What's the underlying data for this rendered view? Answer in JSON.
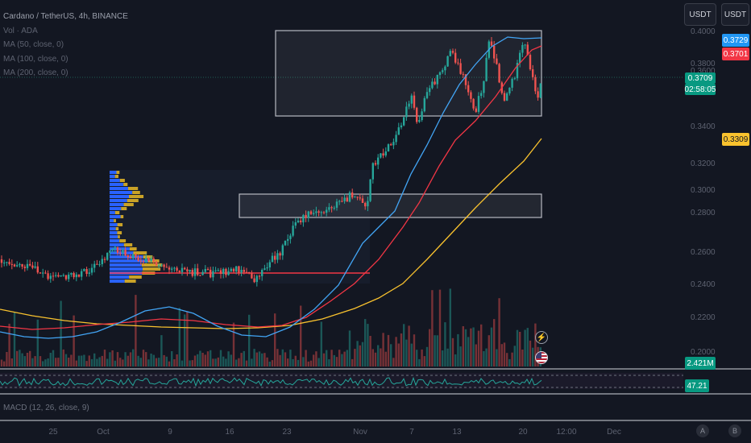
{
  "legend": {
    "symbol": "Cardano / TetherUS, 4h, BINANCE",
    "vol": "Vol · ADA",
    "ma50": "MA (50, close, 0)",
    "ma100": "MA (100, close, 0)",
    "ma200": "MA (200, close, 0)"
  },
  "macd_label": "MACD (12, 26, close, 9)",
  "buttons": {
    "currency_left": "USDT",
    "currency_right": "USDT"
  },
  "price_badges": {
    "ma50": "0.3729",
    "ma100": "0.3701",
    "last_price": "0.3709",
    "countdown": "02:58:05",
    "ma200": "0.3309",
    "volume": "2.421M",
    "rsi": "47.21"
  },
  "price_axis": [
    "0.4000",
    "0.3800",
    "0.3600",
    "0.3400",
    "0.3200",
    "0.3000",
    "0.2800",
    "0.2600",
    "0.2400",
    "0.2200",
    "0.2000"
  ],
  "date_axis": [
    "25",
    "Oct",
    "9",
    "16",
    "23",
    "Nov",
    "7",
    "13",
    "20",
    "12:00",
    "Dec"
  ],
  "corner": {
    "auto": "A",
    "log": "B"
  },
  "colors": {
    "background": "#131722",
    "up": "#26a69a",
    "down": "#ef5350",
    "ma50": "#42a5f5",
    "ma100": "#f23645",
    "ma200": "#f9c22e",
    "rsi": "#26a69a",
    "profile_blue": "#2962ff",
    "profile_gold": "#c9a227"
  },
  "icons": [
    "flash-icon",
    "us-flag-icon"
  ]
}
